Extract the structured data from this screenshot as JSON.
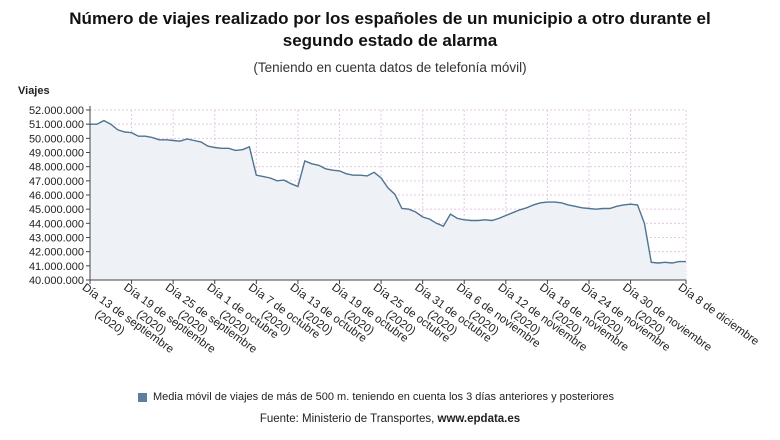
{
  "header": {
    "title_line1": "Número de viajes realizado por los españoles de un municipio a otro durante el",
    "title_line2": "segundo estado de alarma",
    "subtitle": "(Teniendo en cuenta datos de telefonía móvil)"
  },
  "footer": {
    "source_prefix": "Fuente: Ministerio de Transportes, ",
    "source_site": "www.epdata.es"
  },
  "colors": {
    "line": "#4f7391",
    "area": "#eef2f7",
    "grid": "#e3c9e3",
    "axis": "#444444"
  },
  "chart_data": {
    "type": "area",
    "title": "Número de viajes realizado por los españoles de un municipio a otro durante el segundo estado de alarma",
    "subtitle": "(Teniendo en cuenta datos de telefonía móvil)",
    "ylabel": "Viajes",
    "ylim": [
      40000000,
      52000000
    ],
    "yticks": [
      {
        "value": 40000000,
        "label": "40.000.000"
      },
      {
        "value": 41000000,
        "label": "41.000.000"
      },
      {
        "value": 42000000,
        "label": "42.000.000"
      },
      {
        "value": 43000000,
        "label": "43.000.000"
      },
      {
        "value": 44000000,
        "label": "44.000.000"
      },
      {
        "value": 45000000,
        "label": "45.000.000"
      },
      {
        "value": 46000000,
        "label": "46.000.000"
      },
      {
        "value": 47000000,
        "label": "47.000.000"
      },
      {
        "value": 48000000,
        "label": "48.000.000"
      },
      {
        "value": 49000000,
        "label": "49.000.000"
      },
      {
        "value": 50000000,
        "label": "50.000.000"
      },
      {
        "value": 51000000,
        "label": "51.000.000"
      },
      {
        "value": 52000000,
        "label": "52.000.000"
      }
    ],
    "xticks": [
      {
        "line1": "Día 13 de septiembre",
        "line2": "(2020)"
      },
      {
        "line1": "Día 19 de septiembre",
        "line2": "(2020)"
      },
      {
        "line1": "Día 25 de septiembre",
        "line2": "(2020)"
      },
      {
        "line1": "Día 1 de octubre",
        "line2": "(2020)"
      },
      {
        "line1": "Día 7 de octubre",
        "line2": "(2020)"
      },
      {
        "line1": "Día 13 de octubre",
        "line2": "(2020)"
      },
      {
        "line1": "Día 19 de octubre",
        "line2": "(2020)"
      },
      {
        "line1": "Día 25 de octubre",
        "line2": "(2020)"
      },
      {
        "line1": "Día 31 de octubre",
        "line2": "(2020)"
      },
      {
        "line1": "Día 6 de noviembre",
        "line2": "(2020)"
      },
      {
        "line1": "Día 12 de noviembre",
        "line2": "(2020)"
      },
      {
        "line1": "Día 18 de noviembre",
        "line2": "(2020)"
      },
      {
        "line1": "Día 24 de noviembre",
        "line2": "(2020)"
      },
      {
        "line1": "Día 30 de noviembre",
        "line2": "(2020)"
      },
      {
        "line1": "Día 8 de diciembre",
        "line2": ""
      }
    ],
    "grid": true,
    "legend": "bottom",
    "series": [
      {
        "name": "Media móvil de viajes de más de 500 m. teniendo en cuenta los 3 días anteriores y posteriores",
        "x": [
          "2020-09-13",
          "2020-09-14",
          "2020-09-15",
          "2020-09-16",
          "2020-09-17",
          "2020-09-18",
          "2020-09-19",
          "2020-09-20",
          "2020-09-21",
          "2020-09-22",
          "2020-09-23",
          "2020-09-24",
          "2020-09-25",
          "2020-09-26",
          "2020-09-27",
          "2020-09-28",
          "2020-09-29",
          "2020-09-30",
          "2020-10-01",
          "2020-10-02",
          "2020-10-03",
          "2020-10-04",
          "2020-10-05",
          "2020-10-06",
          "2020-10-07",
          "2020-10-08",
          "2020-10-09",
          "2020-10-10",
          "2020-10-11",
          "2020-10-12",
          "2020-10-13",
          "2020-10-14",
          "2020-10-15",
          "2020-10-16",
          "2020-10-17",
          "2020-10-18",
          "2020-10-19",
          "2020-10-20",
          "2020-10-21",
          "2020-10-22",
          "2020-10-23",
          "2020-10-24",
          "2020-10-25",
          "2020-10-26",
          "2020-10-27",
          "2020-10-28",
          "2020-10-29",
          "2020-10-30",
          "2020-10-31",
          "2020-11-01",
          "2020-11-02",
          "2020-11-03",
          "2020-11-04",
          "2020-11-05",
          "2020-11-06",
          "2020-11-07",
          "2020-11-08",
          "2020-11-09",
          "2020-11-10",
          "2020-11-11",
          "2020-11-12",
          "2020-11-13",
          "2020-11-14",
          "2020-11-15",
          "2020-11-16",
          "2020-11-17",
          "2020-11-18",
          "2020-11-19",
          "2020-11-20",
          "2020-11-21",
          "2020-11-22",
          "2020-11-23",
          "2020-11-24",
          "2020-11-25",
          "2020-11-26",
          "2020-11-27",
          "2020-11-28",
          "2020-11-29",
          "2020-11-30",
          "2020-12-01",
          "2020-12-02",
          "2020-12-03",
          "2020-12-04",
          "2020-12-05",
          "2020-12-06",
          "2020-12-07",
          "2020-12-08"
        ],
        "values": [
          51000000,
          51000000,
          51250000,
          51000000,
          50600000,
          50450000,
          50400000,
          50150000,
          50150000,
          50050000,
          49900000,
          49900000,
          49850000,
          49800000,
          49950000,
          49850000,
          49750000,
          49450000,
          49350000,
          49300000,
          49300000,
          49150000,
          49200000,
          49400000,
          47400000,
          47300000,
          47200000,
          47000000,
          47050000,
          46800000,
          46600000,
          48400000,
          48200000,
          48100000,
          47850000,
          47750000,
          47700000,
          47500000,
          47400000,
          47400000,
          47350000,
          47600000,
          47200000,
          46500000,
          46050000,
          45050000,
          45000000,
          44800000,
          44450000,
          44300000,
          44000000,
          43800000,
          44650000,
          44350000,
          44250000,
          44200000,
          44200000,
          44250000,
          44200000,
          44350000,
          44550000,
          44750000,
          44950000,
          45100000,
          45300000,
          45450000,
          45500000,
          45500000,
          45450000,
          45300000,
          45200000,
          45100000,
          45050000,
          45000000,
          45050000,
          45050000,
          45200000,
          45300000,
          45350000,
          45300000,
          44000000,
          41250000,
          41200000,
          41250000,
          41200000,
          41300000,
          41300000
        ]
      }
    ]
  }
}
